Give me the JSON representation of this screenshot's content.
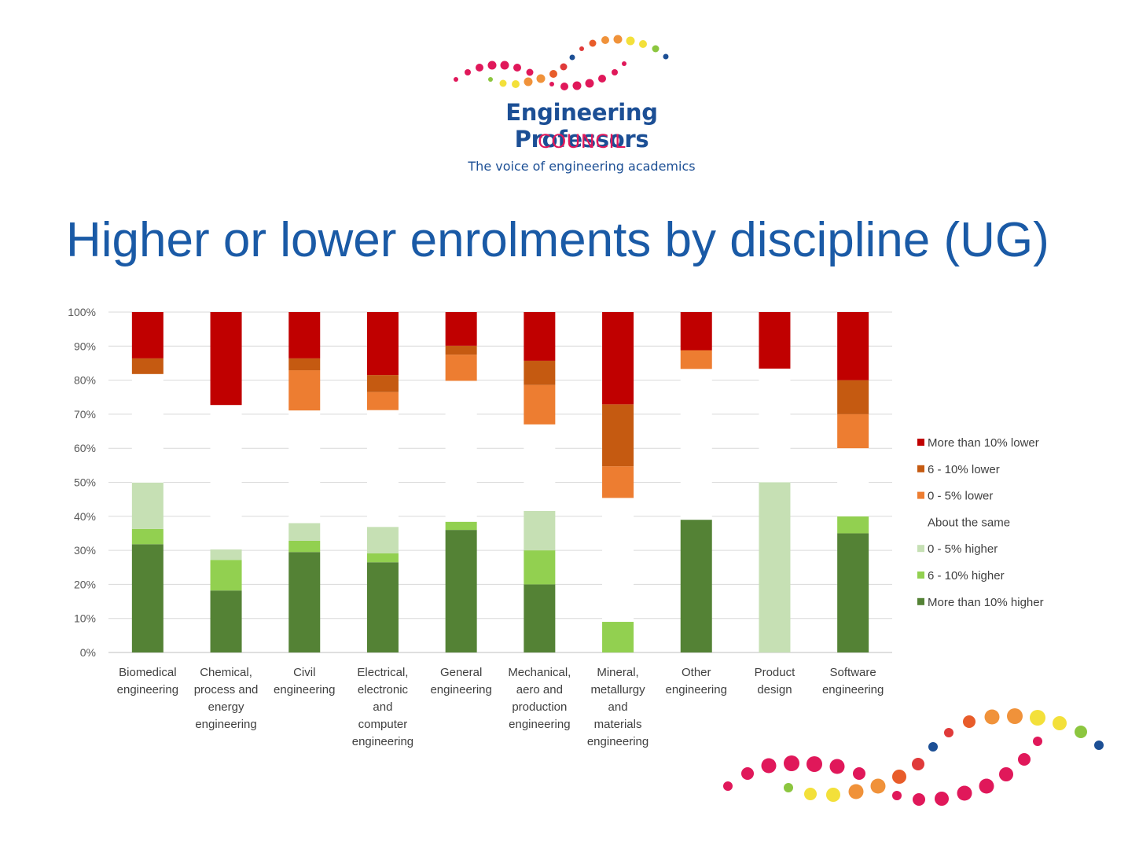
{
  "logo": {
    "line1": "Engineering Professors",
    "line2": "COUNCIL",
    "line3": "The voice of engineering academics"
  },
  "title": "Higher or lower enrolments by discipline (UG)",
  "chart_data": {
    "type": "bar",
    "stacked": true,
    "categories": [
      "Biomedical engineering",
      "Chemical, process and energy engineering",
      "Civil engineering",
      "Electrical, electronic and computer engineering",
      "General engineering",
      "Mechanical, aero and production engineering",
      "Mineral, metallurgy and materials engineering",
      "Other engineering",
      "Product design",
      "Software engineering"
    ],
    "category_lines": [
      [
        "Biomedical",
        "engineering"
      ],
      [
        "Chemical,",
        "process and",
        "energy",
        "engineering"
      ],
      [
        "Civil",
        "engineering"
      ],
      [
        "Electrical,",
        "electronic",
        "and",
        "computer",
        "engineering"
      ],
      [
        "General",
        "engineering"
      ],
      [
        "Mechanical,",
        "aero and",
        "production",
        "engineering"
      ],
      [
        "Mineral,",
        "metallurgy",
        "and",
        "materials",
        "engineering"
      ],
      [
        "Other",
        "engineering"
      ],
      [
        "Product",
        "design"
      ],
      [
        "Software",
        "engineering"
      ]
    ],
    "series": [
      {
        "name": "More than 10% higher",
        "color": "#548235",
        "values": [
          31.8,
          18.2,
          29.5,
          26.5,
          36.0,
          20.0,
          0.0,
          39.0,
          0.0,
          35.0
        ]
      },
      {
        "name": "6 - 10% higher",
        "color": "#92d050",
        "values": [
          4.5,
          9.0,
          3.3,
          2.6,
          2.4,
          10.0,
          9.0,
          0.0,
          0.0,
          5.0
        ]
      },
      {
        "name": "0 - 5% higher",
        "color": "#c6e0b4",
        "values": [
          13.6,
          3.1,
          5.2,
          7.8,
          0.0,
          11.6,
          0.0,
          0.0,
          50.0,
          0.0
        ]
      },
      {
        "name": "About the same",
        "color": "#ffffff",
        "values": [
          31.9,
          42.4,
          33.1,
          34.3,
          41.4,
          25.4,
          36.4,
          44.3,
          33.4,
          20.0
        ]
      },
      {
        "name": "0 - 5% lower",
        "color": "#ed7d31",
        "values": [
          0.0,
          0.0,
          11.8,
          5.3,
          7.7,
          11.6,
          9.3,
          5.5,
          0.0,
          10.0
        ]
      },
      {
        "name": "6 - 10% lower",
        "color": "#c55a11",
        "values": [
          4.6,
          0.0,
          3.5,
          5.0,
          2.6,
          7.1,
          18.2,
          0.0,
          0.0,
          10.0
        ]
      },
      {
        "name": "More than 10% lower",
        "color": "#c00000",
        "values": [
          13.6,
          27.3,
          13.6,
          18.5,
          9.9,
          14.3,
          27.1,
          11.2,
          16.6,
          20.0
        ]
      }
    ],
    "y_ticks": [
      "0%",
      "10%",
      "20%",
      "30%",
      "40%",
      "50%",
      "60%",
      "70%",
      "80%",
      "90%",
      "100%"
    ],
    "ylim": [
      0,
      100
    ],
    "grid": true,
    "legend": "right",
    "legend_order": [
      "More than 10% lower",
      "6 - 10% lower",
      "0 - 5% lower",
      "About the same",
      "0 - 5% higher",
      "6 - 10% higher",
      "More than 10% higher"
    ]
  }
}
